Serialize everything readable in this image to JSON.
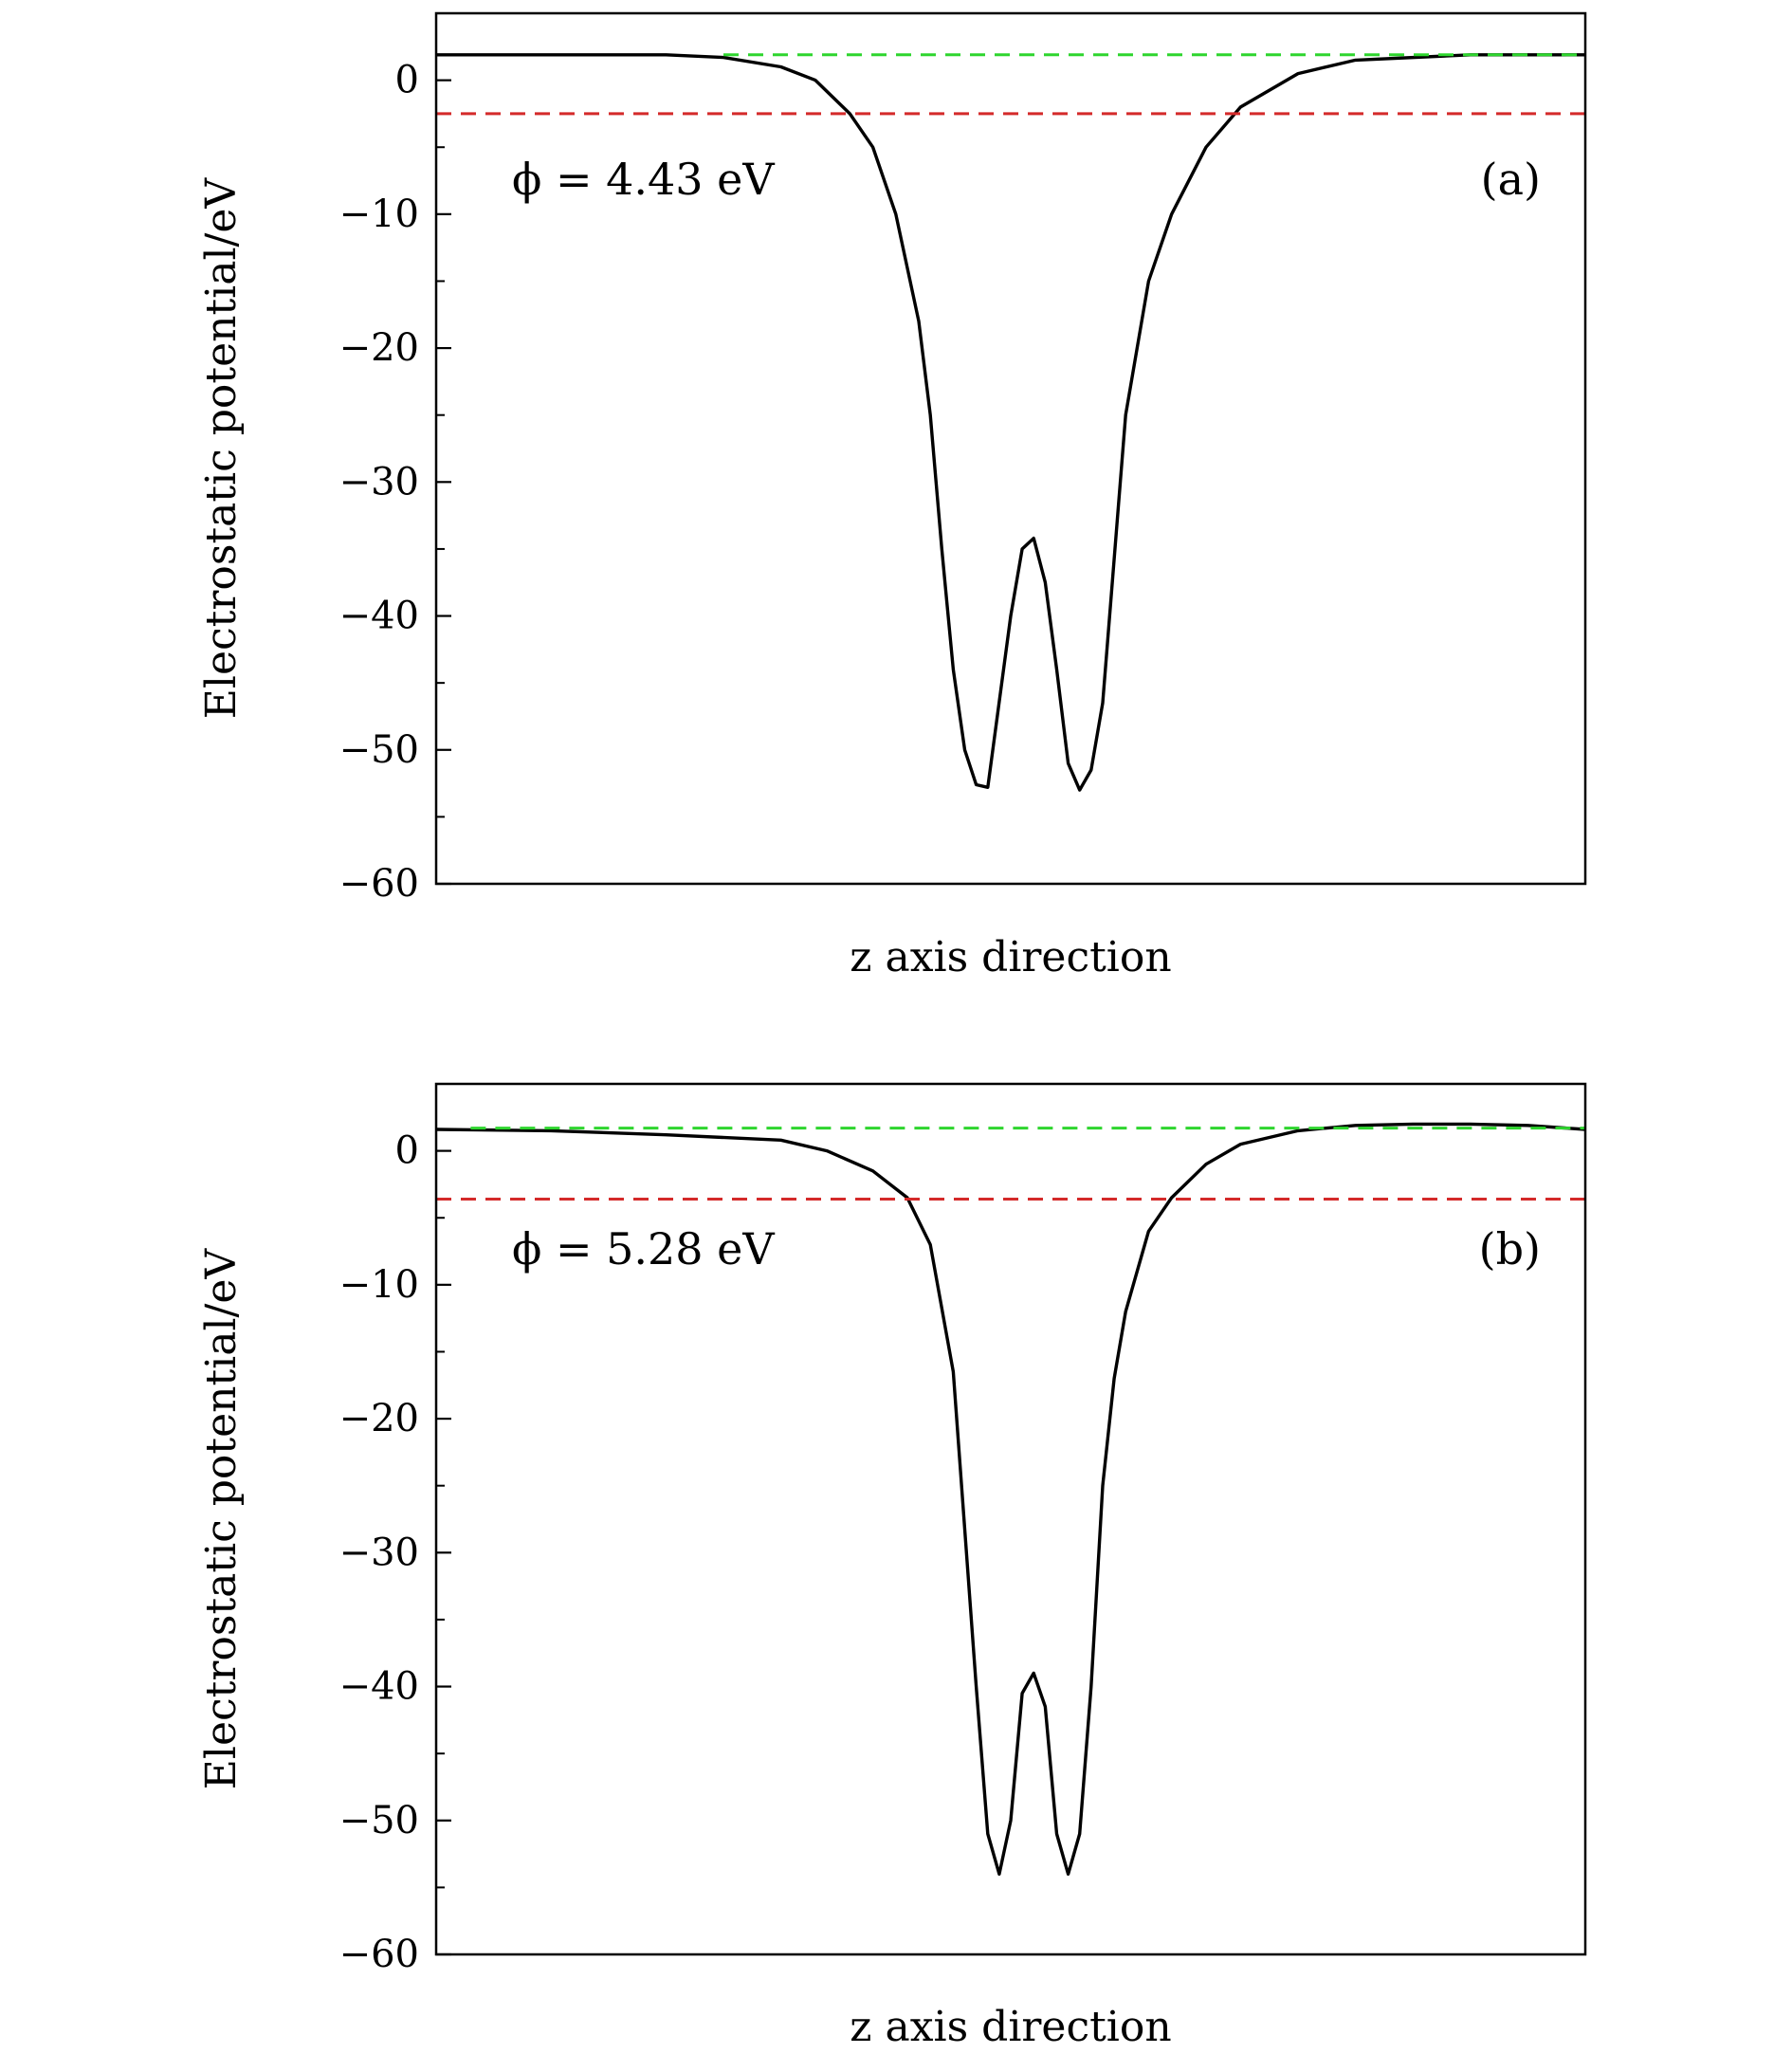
{
  "chart_data": [
    {
      "type": "line",
      "panel_label": "(a)",
      "annotation": "ϕ = 4.43 eV",
      "xlabel": "z axis direction",
      "ylabel": "Electrostatic potential/eV",
      "ylim": [
        -60,
        5
      ],
      "xlim": [
        0,
        1
      ],
      "yticks": [
        0,
        -10,
        -20,
        -30,
        -40,
        -50,
        -60
      ],
      "yticks_minor": [
        -5,
        -15,
        -25,
        -35,
        -45,
        -55
      ],
      "tick_labels": [
        "0",
        "−10",
        "−20",
        "−30",
        "−40",
        "−50",
        "−60"
      ],
      "grid": false,
      "vacuum_level": 1.9,
      "fermi_level": -2.5,
      "series": [
        {
          "color": "#000000",
          "style": "solid",
          "x": [
            0.0,
            0.1,
            0.2,
            0.25,
            0.3,
            0.33,
            0.36,
            0.38,
            0.4,
            0.42,
            0.43,
            0.44,
            0.45,
            0.46,
            0.47,
            0.48,
            0.5,
            0.51,
            0.52,
            0.53,
            0.54,
            0.55,
            0.56,
            0.57,
            0.58,
            0.6,
            0.62,
            0.64,
            0.67,
            0.7,
            0.75,
            0.8,
            0.9,
            1.0
          ],
          "y": [
            1.9,
            1.9,
            1.9,
            1.7,
            1.0,
            0.0,
            -2.5,
            -5.0,
            -10.0,
            -18.0,
            -25.0,
            -35.0,
            -44.0,
            -50.0,
            -52.6,
            -52.8,
            -40.0,
            -35.0,
            -34.2,
            -37.5,
            -44.0,
            -51.0,
            -53.0,
            -51.5,
            -46.5,
            -25.0,
            -15.0,
            -10.0,
            -5.0,
            -2.0,
            0.5,
            1.5,
            1.9,
            1.9
          ]
        },
        {
          "color": "#2ed52e",
          "style": "dashed",
          "x": [
            0.25,
            1.0
          ],
          "y": [
            1.9,
            1.9
          ]
        },
        {
          "color": "#d42a2a",
          "style": "dashed",
          "x": [
            0.0,
            1.0
          ],
          "y": [
            -2.5,
            -2.5
          ]
        }
      ]
    },
    {
      "type": "line",
      "panel_label": "(b)",
      "annotation": "ϕ = 5.28 eV",
      "xlabel": "z axis direction",
      "ylabel": "Electrostatic potential/eV",
      "ylim": [
        -60,
        5
      ],
      "xlim": [
        0,
        1
      ],
      "yticks": [
        0,
        -10,
        -20,
        -30,
        -40,
        -50,
        -60
      ],
      "yticks_minor": [
        -5,
        -15,
        -25,
        -35,
        -45,
        -55
      ],
      "tick_labels": [
        "0",
        "−10",
        "−20",
        "−30",
        "−40",
        "−50",
        "−60"
      ],
      "grid": false,
      "vacuum_level": 1.7,
      "fermi_level": -3.6,
      "series": [
        {
          "color": "#000000",
          "style": "solid",
          "x": [
            0.0,
            0.1,
            0.2,
            0.3,
            0.34,
            0.38,
            0.41,
            0.43,
            0.45,
            0.47,
            0.48,
            0.49,
            0.5,
            0.51,
            0.52,
            0.53,
            0.54,
            0.55,
            0.56,
            0.57,
            0.58,
            0.59,
            0.6,
            0.62,
            0.64,
            0.67,
            0.7,
            0.75,
            0.8,
            0.85,
            0.9,
            0.95,
            1.0
          ],
          "y": [
            1.6,
            1.5,
            1.2,
            0.8,
            0.0,
            -1.5,
            -3.5,
            -7.0,
            -16.5,
            -40.0,
            -51.0,
            -54.0,
            -50.0,
            -40.5,
            -39.0,
            -41.5,
            -51.0,
            -54.0,
            -51.0,
            -40.0,
            -25.0,
            -17.0,
            -12.0,
            -6.0,
            -3.5,
            -1.0,
            0.5,
            1.5,
            1.9,
            2.0,
            2.0,
            1.9,
            1.6
          ]
        },
        {
          "color": "#2ed52e",
          "style": "dashed",
          "x": [
            0.03,
            1.0
          ],
          "y": [
            1.7,
            1.7
          ]
        },
        {
          "color": "#d42a2a",
          "style": "dashed",
          "x": [
            0.0,
            1.0
          ],
          "y": [
            -3.6,
            -3.6
          ]
        }
      ]
    }
  ]
}
